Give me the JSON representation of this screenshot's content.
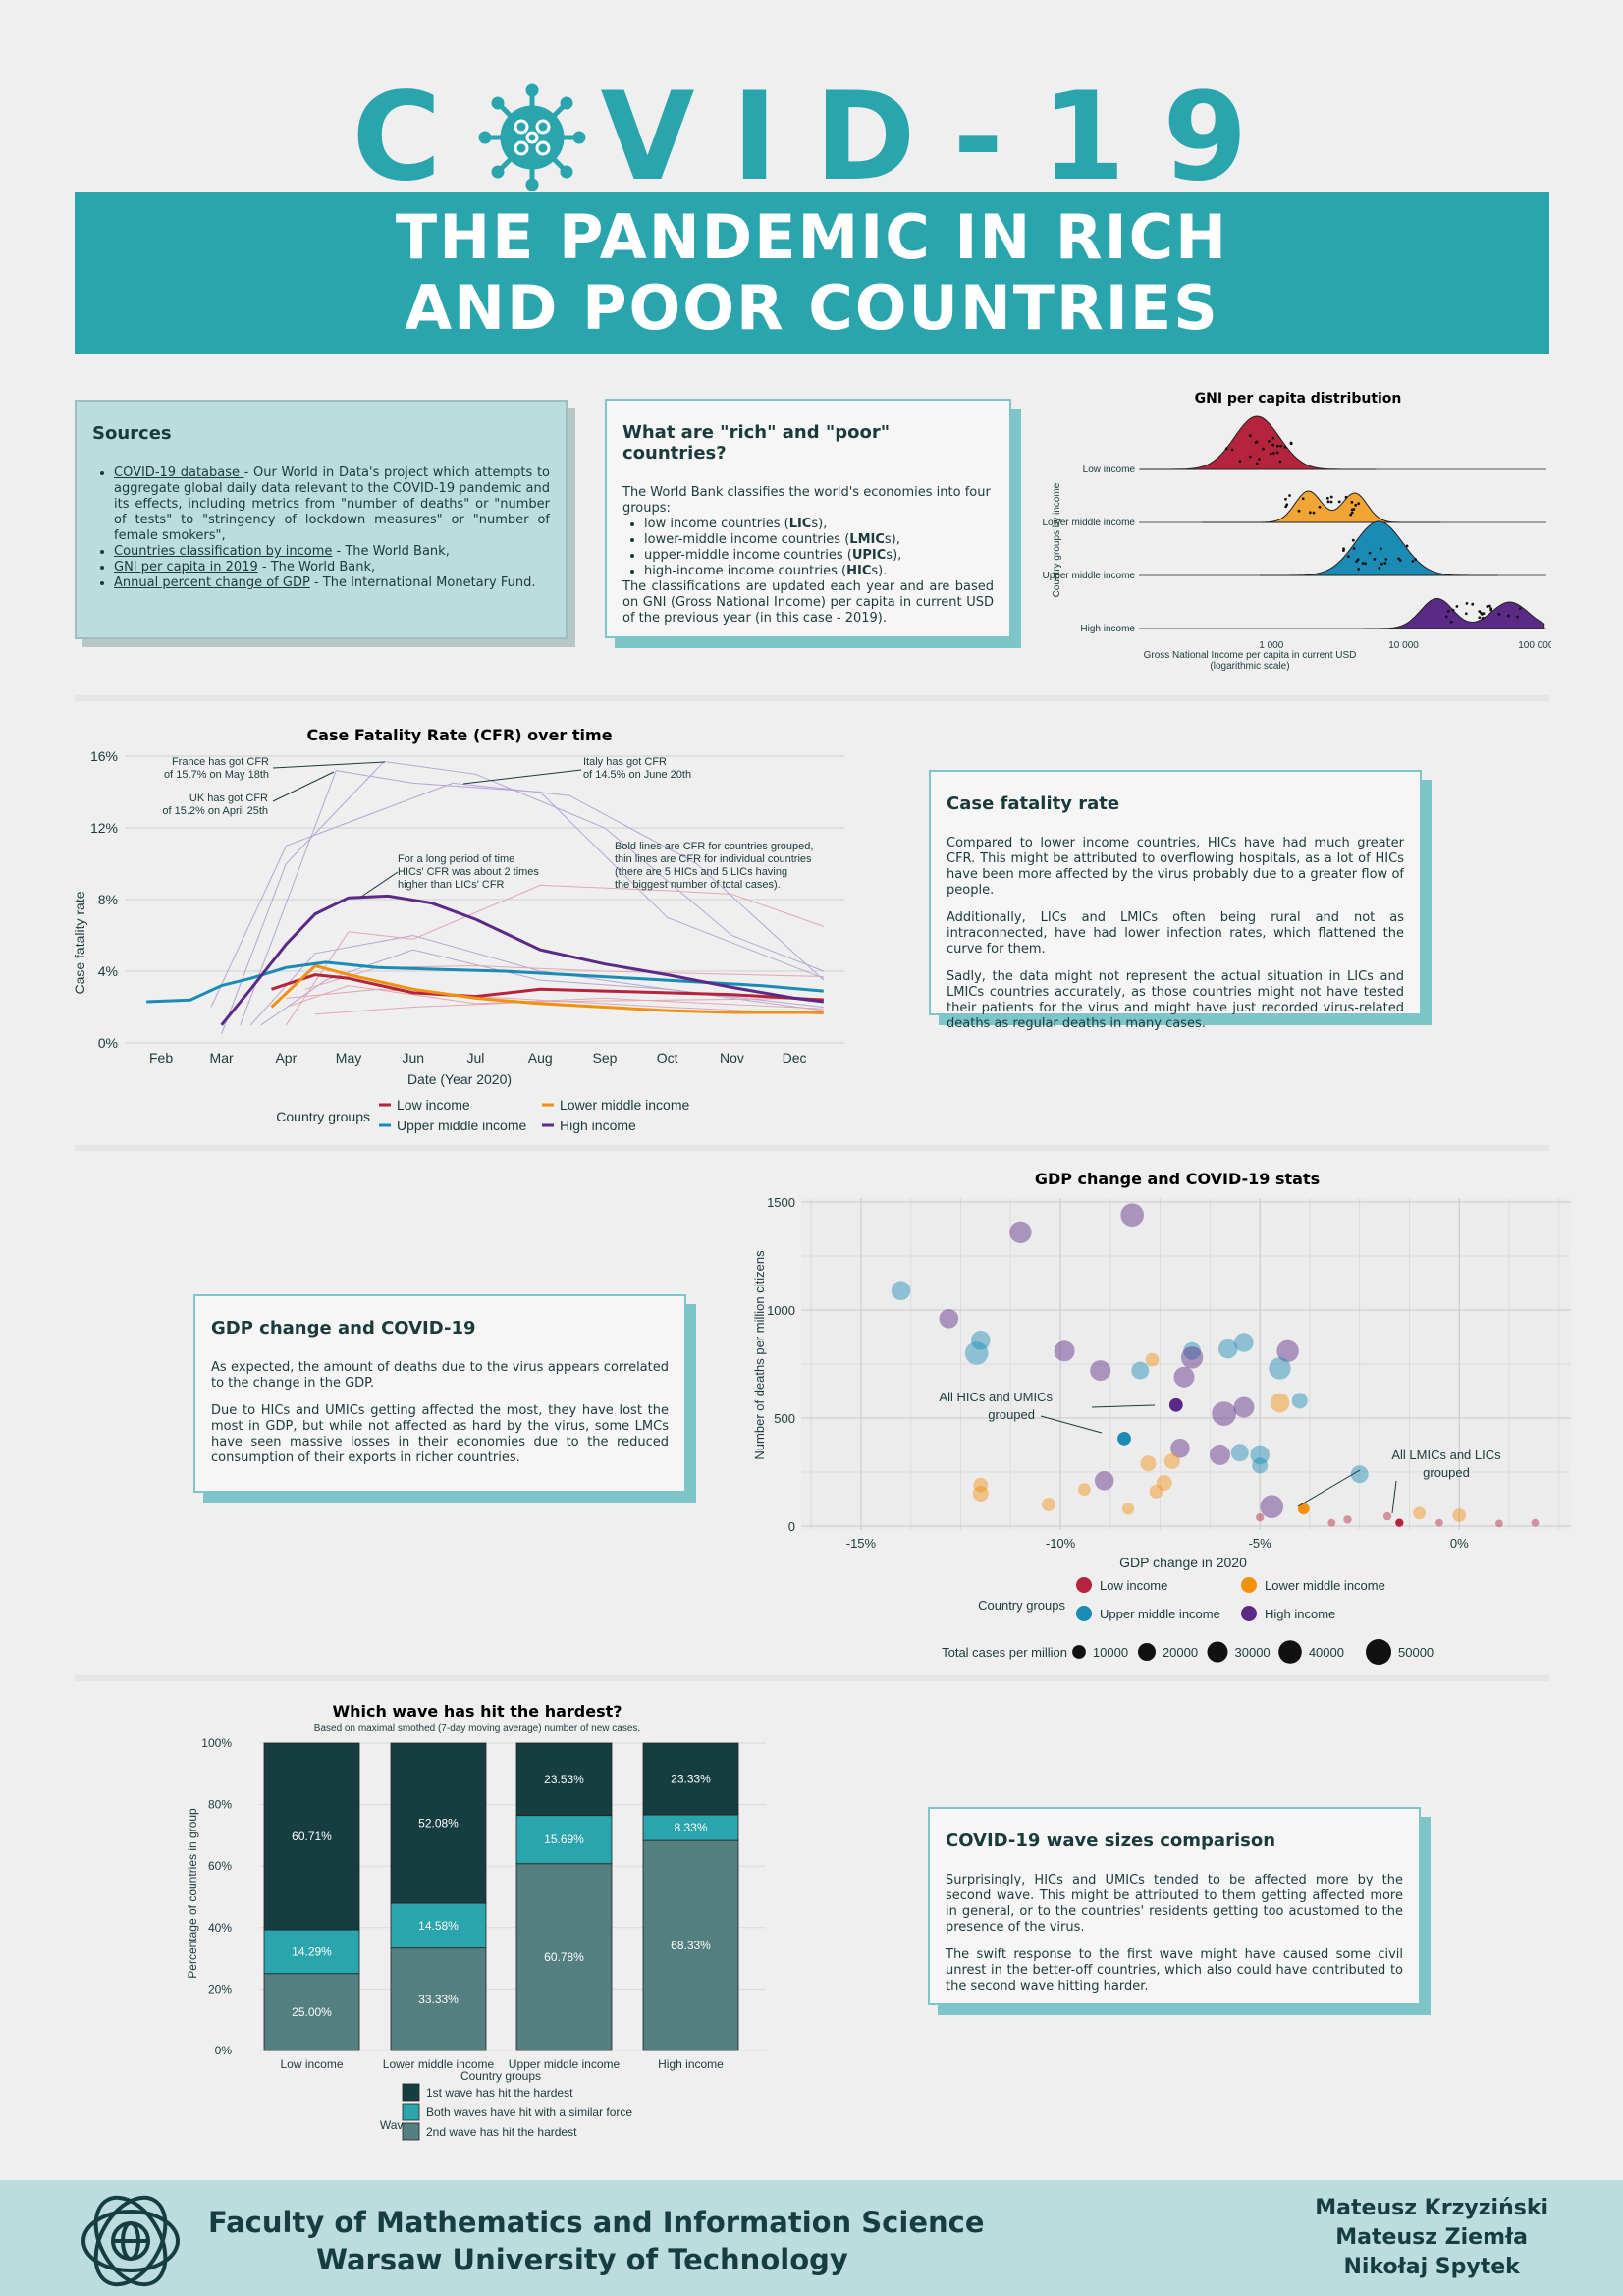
{
  "header": {
    "title_letters": [
      "C",
      "V",
      "I",
      "D",
      "-",
      "1",
      "9"
    ],
    "subtitle_line1": "THE PANDEMIC IN RICH",
    "subtitle_line2": "AND POOR COUNTRIES"
  },
  "colors": {
    "teal": "#2aa5ad",
    "low": "#b5233c",
    "lower_middle": "#f2900f",
    "upper_middle": "#1a8bb5",
    "high": "#5b2a86",
    "dark": "#163e40"
  },
  "sources": {
    "title": "Sources",
    "items": [
      {
        "link": "COVID-19 database ",
        "text": "- Our World in Data's project which attempts to aggregate global daily data relevant to the COVID-19 pandemic and its effects, including metrics from \"number of deaths\"  or \"number of tests\" to \"stringency of lockdown measures\" or \"number of female smokers\","
      },
      {
        "link": "Countries classification by income",
        "text": " - The World Bank,"
      },
      {
        "link": "GNI per capita in 2019",
        "text": " - The World Bank,"
      },
      {
        "link": "Annual percent change of GDP",
        "text": " - The International Monetary Fund."
      }
    ]
  },
  "rich_poor": {
    "title": "What are \"rich\" and \"poor\" countries?",
    "intro": "The World Bank classifies the world's economies into four groups:",
    "items": [
      {
        "text": "low income countries (",
        "abbr": "LIC",
        "suffix": "s),"
      },
      {
        "text": "lower-middle income countries (",
        "abbr": "LMIC",
        "suffix": "s),"
      },
      {
        "text": "upper-middle income countries (",
        "abbr": "UPIC",
        "suffix": "s),"
      },
      {
        "text": "high-income income countries (",
        "abbr": "HIC",
        "suffix": "s)."
      }
    ],
    "outro": "The classifications are updated each year and are based on GNI (Gross National Income) per capita in current USD of the previous year (in this case - 2019)."
  },
  "cfr_card": {
    "title": "Case fatality rate",
    "p1": "Compared to lower income countries, HICs  have had much greater CFR. This might be attributed to overflowing hospitals, as a lot of HICs have been more affected by the virus probably due to a greater flow of people.",
    "p2": "Additionally, LICs and LMICs often being rural and not as intraconnected, have had lower infection rates, which flattened the curve for them.",
    "p3": "Sadly, the data might not represent the actual situation in LICs and LMICs countries accurately, as those countries might not have tested their patients for the virus and might have just recorded virus-related deaths as regular deaths in many cases."
  },
  "gdp_card": {
    "title": "GDP change and COVID-19",
    "p1": "As expected, the amount of deaths due to the virus appears correlated to the change in the GDP.",
    "p2": "Due to HICs and UMICs getting affected the most, they have lost the most in GDP, but while not affected as hard by the virus, some LMCs have seen massive losses in their economies due to the reduced consumption of their exports in richer countries."
  },
  "wave_card": {
    "title": "COVID-19 wave sizes comparison",
    "p1": "Surprisingly, HICs and UMICs tended to be affected more by the second wave. This might be attributed to them getting affected more in general, or to the countries' residents getting too acustomed to the presence of the virus.",
    "p2": "The swift response to the first wave might have caused some civil unrest in the better-off countries, which also could have contributed to the second wave hitting harder."
  },
  "chart_data": [
    {
      "type": "area",
      "subtype": "ridgeline",
      "title": "GNI per capita distribution",
      "xlabel": "Gross National Income per capita in current USD (logarithmic scale)",
      "ylabel": "Country groups by income",
      "x_scale": "log",
      "xlim": [
        100,
        120000
      ],
      "x_ticks": [
        "1 000",
        "10 000",
        "100 000"
      ],
      "groups": [
        {
          "name": "Low income",
          "peak": 780,
          "color": "#b5233c"
        },
        {
          "name": "Lower middle income",
          "peak": 2400,
          "color": "#f2a534"
        },
        {
          "name": "Upper middle income",
          "peak": 6500,
          "color": "#1a8bb5"
        },
        {
          "name": "High income",
          "peak": 40000,
          "color": "#5b2a86"
        }
      ]
    },
    {
      "type": "line",
      "title": "Case Fatality Rate (CFR) over time",
      "xlabel": "Date (Year 2020)",
      "ylabel": "Case fatality rate",
      "x_ticks": [
        "Feb",
        "Mar",
        "Apr",
        "May",
        "Jun",
        "Jul",
        "Aug",
        "Sep",
        "Oct",
        "Nov",
        "Dec"
      ],
      "y_ticks": [
        "0%",
        "4%",
        "8%",
        "12%",
        "16%"
      ],
      "ylim": [
        0,
        16
      ],
      "legend_title": "Country groups",
      "series": [
        {
          "name": "Low income",
          "color": "#b5233c",
          "x": [
            "2020-03-25",
            "2020-04-15",
            "2020-05-01",
            "2020-06-01",
            "2020-07-01",
            "2020-08-01",
            "2020-09-01",
            "2020-10-01",
            "2020-11-01",
            "2020-12-01",
            "2020-12-15"
          ],
          "y": [
            3.0,
            3.8,
            3.6,
            2.8,
            2.6,
            3.0,
            2.9,
            2.8,
            2.7,
            2.5,
            2.4
          ]
        },
        {
          "name": "Lower middle income",
          "color": "#f2900f",
          "x": [
            "2020-03-25",
            "2020-04-15",
            "2020-05-01",
            "2020-06-01",
            "2020-07-01",
            "2020-08-01",
            "2020-09-01",
            "2020-10-01",
            "2020-11-01",
            "2020-12-01",
            "2020-12-15"
          ],
          "y": [
            2.0,
            4.3,
            3.8,
            3.0,
            2.5,
            2.2,
            2.0,
            1.8,
            1.7,
            1.7,
            1.7
          ]
        },
        {
          "name": "Upper middle income",
          "color": "#1a8bb5",
          "x": [
            "2020-01-25",
            "2020-02-15",
            "2020-03-01",
            "2020-03-15",
            "2020-04-01",
            "2020-04-20",
            "2020-05-15",
            "2020-06-15",
            "2020-07-15",
            "2020-08-15",
            "2020-09-15",
            "2020-10-15",
            "2020-11-15",
            "2020-12-15"
          ],
          "y": [
            2.3,
            2.4,
            3.2,
            3.6,
            4.2,
            4.5,
            4.2,
            4.1,
            4.0,
            3.8,
            3.6,
            3.4,
            3.2,
            2.9
          ]
        },
        {
          "name": "High income",
          "color": "#5b2a86",
          "x": [
            "2020-03-01",
            "2020-03-15",
            "2020-04-01",
            "2020-04-15",
            "2020-05-01",
            "2020-05-20",
            "2020-06-10",
            "2020-07-01",
            "2020-08-01",
            "2020-09-01",
            "2020-10-01",
            "2020-11-01",
            "2020-12-01",
            "2020-12-15"
          ],
          "y": [
            1.0,
            3.0,
            5.5,
            7.2,
            8.1,
            8.2,
            7.8,
            6.9,
            5.2,
            4.4,
            3.8,
            3.1,
            2.5,
            2.3
          ]
        }
      ],
      "annotations": [
        "France has got CFR of 15.7% on May 18th",
        "UK has got CFR of 15.2% on April 25th",
        "Italy has got CFR of 14.5% on June 20th",
        "For a long period of time HICs' CFR was about 2 times higher than LICs' CFR",
        "Bold lines are CFR for countries grouped, thin lines are CFR for individual countries (there are 5 HICs and 5 LICs having the biggest number of total cases)."
      ]
    },
    {
      "type": "scatter",
      "title": "GDP change and COVID-19 stats",
      "xlabel": "GDP change in 2020",
      "ylabel": "Number of deaths per million citizens",
      "x_ticks": [
        "-15%",
        "-10%",
        "-5%",
        "0%"
      ],
      "y_ticks": [
        "0",
        "500",
        "1000",
        "1500"
      ],
      "xlim": [
        -16.5,
        2.8
      ],
      "ylim": [
        0,
        1500
      ],
      "legend_title": "Country groups",
      "size_legend_title": "Total cases per million",
      "size_legend": [
        10000,
        20000,
        30000,
        40000,
        50000
      ],
      "annotations": [
        "All HICs and UMICs grouped",
        "All LMICs and LICs grouped"
      ],
      "points": [
        {
          "g": "high",
          "x": -8.2,
          "y": 1440,
          "s": 40000
        },
        {
          "g": "high",
          "x": -11.0,
          "y": 1360,
          "s": 35000
        },
        {
          "g": "upper",
          "x": -14.0,
          "y": 1090,
          "s": 25000
        },
        {
          "g": "high",
          "x": -12.8,
          "y": 960,
          "s": 25000
        },
        {
          "g": "upper",
          "x": -12.0,
          "y": 860,
          "s": 25000
        },
        {
          "g": "upper",
          "x": -12.1,
          "y": 800,
          "s": 40000
        },
        {
          "g": "high",
          "x": -9.9,
          "y": 810,
          "s": 30000
        },
        {
          "g": "high",
          "x": -9.0,
          "y": 720,
          "s": 30000
        },
        {
          "g": "lower",
          "x": -7.7,
          "y": 770,
          "s": 10000
        },
        {
          "g": "upper",
          "x": -8.0,
          "y": 720,
          "s": 20000
        },
        {
          "g": "upper",
          "x": -6.7,
          "y": 810,
          "s": 20000
        },
        {
          "g": "high",
          "x": -6.7,
          "y": 780,
          "s": 35000
        },
        {
          "g": "high",
          "x": -6.9,
          "y": 690,
          "s": 30000
        },
        {
          "g": "upper",
          "x": -5.8,
          "y": 820,
          "s": 25000
        },
        {
          "g": "upper",
          "x": -5.4,
          "y": 850,
          "s": 25000
        },
        {
          "g": "high",
          "x": -4.3,
          "y": 810,
          "s": 35000
        },
        {
          "g": "upper",
          "x": -4.5,
          "y": 730,
          "s": 35000
        },
        {
          "g": "lower",
          "x": -4.5,
          "y": 570,
          "s": 25000
        },
        {
          "g": "upper",
          "x": -4.0,
          "y": 580,
          "s": 15000
        },
        {
          "g": "high",
          "x": -5.9,
          "y": 520,
          "s": 45000
        },
        {
          "g": "high",
          "x": -5.4,
          "y": 550,
          "s": 30000
        },
        {
          "g": "high",
          "x": -7.0,
          "y": 360,
          "s": 25000
        },
        {
          "g": "upper",
          "x": -5.5,
          "y": 340,
          "s": 20000
        },
        {
          "g": "high",
          "x": -6.0,
          "y": 330,
          "s": 30000
        },
        {
          "g": "upper",
          "x": -5.0,
          "y": 330,
          "s": 25000
        },
        {
          "g": "upper",
          "x": -5.0,
          "y": 280,
          "s": 15000
        },
        {
          "g": "upper",
          "x": -2.5,
          "y": 240,
          "s": 20000
        },
        {
          "g": "high",
          "x": -8.9,
          "y": 210,
          "s": 25000
        },
        {
          "g": "high",
          "x": -4.7,
          "y": 90,
          "s": 40000
        },
        {
          "g": "lower",
          "x": -7.2,
          "y": 300,
          "s": 15000
        },
        {
          "g": "lower",
          "x": -7.8,
          "y": 290,
          "s": 15000
        },
        {
          "g": "lower",
          "x": -7.4,
          "y": 200,
          "s": 15000
        },
        {
          "g": "lower",
          "x": -7.6,
          "y": 160,
          "s": 10000
        },
        {
          "g": "lower",
          "x": -12.0,
          "y": 190,
          "s": 12000
        },
        {
          "g": "lower",
          "x": -12.0,
          "y": 150,
          "s": 15000
        },
        {
          "g": "lower",
          "x": -10.3,
          "y": 100,
          "s": 10000
        },
        {
          "g": "lower",
          "x": -9.4,
          "y": 170,
          "s": 8000
        },
        {
          "g": "lower",
          "x": -8.3,
          "y": 80,
          "s": 7000
        },
        {
          "g": "lower",
          "x": -1.0,
          "y": 60,
          "s": 8000
        },
        {
          "g": "lower",
          "x": 0.0,
          "y": 50,
          "s": 10000
        },
        {
          "g": "low",
          "x": -5.0,
          "y": 40,
          "s": 2000
        },
        {
          "g": "low",
          "x": -2.8,
          "y": 30,
          "s": 2000
        },
        {
          "g": "low",
          "x": -1.8,
          "y": 45,
          "s": 2000
        },
        {
          "g": "low",
          "x": -0.5,
          "y": 15,
          "s": 1500
        },
        {
          "g": "low",
          "x": 1.0,
          "y": 12,
          "s": 1500
        },
        {
          "g": "low",
          "x": 1.9,
          "y": 15,
          "s": 1500
        },
        {
          "g": "low",
          "x": -3.2,
          "y": 15,
          "s": 1500
        },
        {
          "g": "high",
          "x": -7.1,
          "y": 560,
          "s": 10000,
          "grouped": true
        },
        {
          "g": "upper",
          "x": -8.4,
          "y": 405,
          "s": 10000,
          "grouped": true
        },
        {
          "g": "lower",
          "x": -3.9,
          "y": 80,
          "s": 6000,
          "grouped": true
        },
        {
          "g": "low",
          "x": -1.5,
          "y": 15,
          "s": 2000,
          "grouped": true
        }
      ]
    },
    {
      "type": "bar",
      "subtype": "stacked",
      "title": "Which wave has hit the hardest?",
      "subtitle": "Based on maximal smothed (7-day moving average) number of new cases.",
      "xlabel": "Country groups",
      "ylabel": "Percentage of countries in group",
      "y_ticks": [
        "0%",
        "20%",
        "40%",
        "60%",
        "80%",
        "100%"
      ],
      "categories": [
        "Low income",
        "Lower middle income",
        "Upper middle income",
        "High income"
      ],
      "legend_title": "Wave",
      "series": [
        {
          "name": "2nd wave has hit the hardest",
          "color": "#53807f",
          "values": [
            25.0,
            33.33,
            60.78,
            68.33
          ],
          "labels": [
            "25.00%",
            "33.33%",
            "60.78%",
            "68.33%"
          ]
        },
        {
          "name": "Both waves have hit with a similar force",
          "color": "#2aa5ad",
          "values": [
            14.29,
            14.58,
            15.69,
            8.33
          ],
          "labels": [
            "14.29%",
            "14.58%",
            "15.69%",
            "8.33%"
          ]
        },
        {
          "name": "1st wave has hit the hardest",
          "color": "#163e40",
          "values": [
            60.71,
            52.08,
            23.53,
            23.33
          ],
          "labels": [
            "60.71%",
            "52.08%",
            "23.53%",
            "23.33%"
          ]
        }
      ]
    }
  ],
  "footer": {
    "faculty_line1": "Faculty of Mathematics and Information Science",
    "faculty_line2": "Warsaw University of Technology",
    "authors": [
      "Mateusz Krzyziński",
      "Mateusz Ziemła",
      "Nikołaj Spytek"
    ]
  }
}
